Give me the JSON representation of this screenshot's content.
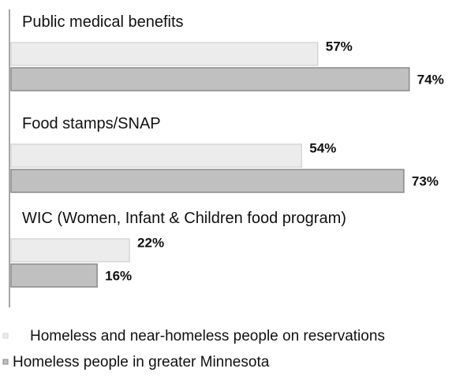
{
  "chart_data": {
    "type": "bar",
    "orientation": "horizontal",
    "categories": [
      "Public medical benefits",
      "Food stamps/SNAP",
      "WIC (Women, Infant & Children food program)"
    ],
    "series": [
      {
        "name": "Homeless and near-homeless people on reservations",
        "values": [
          57,
          54,
          22
        ],
        "value_labels": [
          "57%",
          "54%",
          "22%"
        ],
        "color": "#ececec"
      },
      {
        "name": "Homeless people in greater Minnesota",
        "values": [
          74,
          73,
          16
        ],
        "value_labels": [
          "74%",
          "73%",
          "16%"
        ],
        "color": "#c0c0c0"
      }
    ],
    "title": "",
    "xlabel": "",
    "ylabel": "",
    "xlim": [
      0,
      100
    ],
    "grid": false,
    "legend_position": "bottom-left"
  }
}
